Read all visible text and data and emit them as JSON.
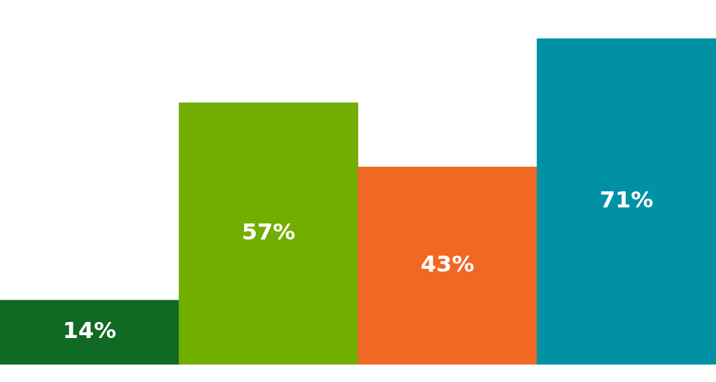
{
  "chart_data": {
    "type": "bar",
    "categories": [
      null,
      null,
      null,
      null
    ],
    "values": [
      14,
      57,
      43,
      71
    ],
    "colors": [
      "#106a24",
      "#72ae00",
      "#f06824",
      "#0092a4"
    ],
    "value_labels": [
      "14%",
      "57%",
      "43%",
      "71%"
    ],
    "legend": false
  }
}
